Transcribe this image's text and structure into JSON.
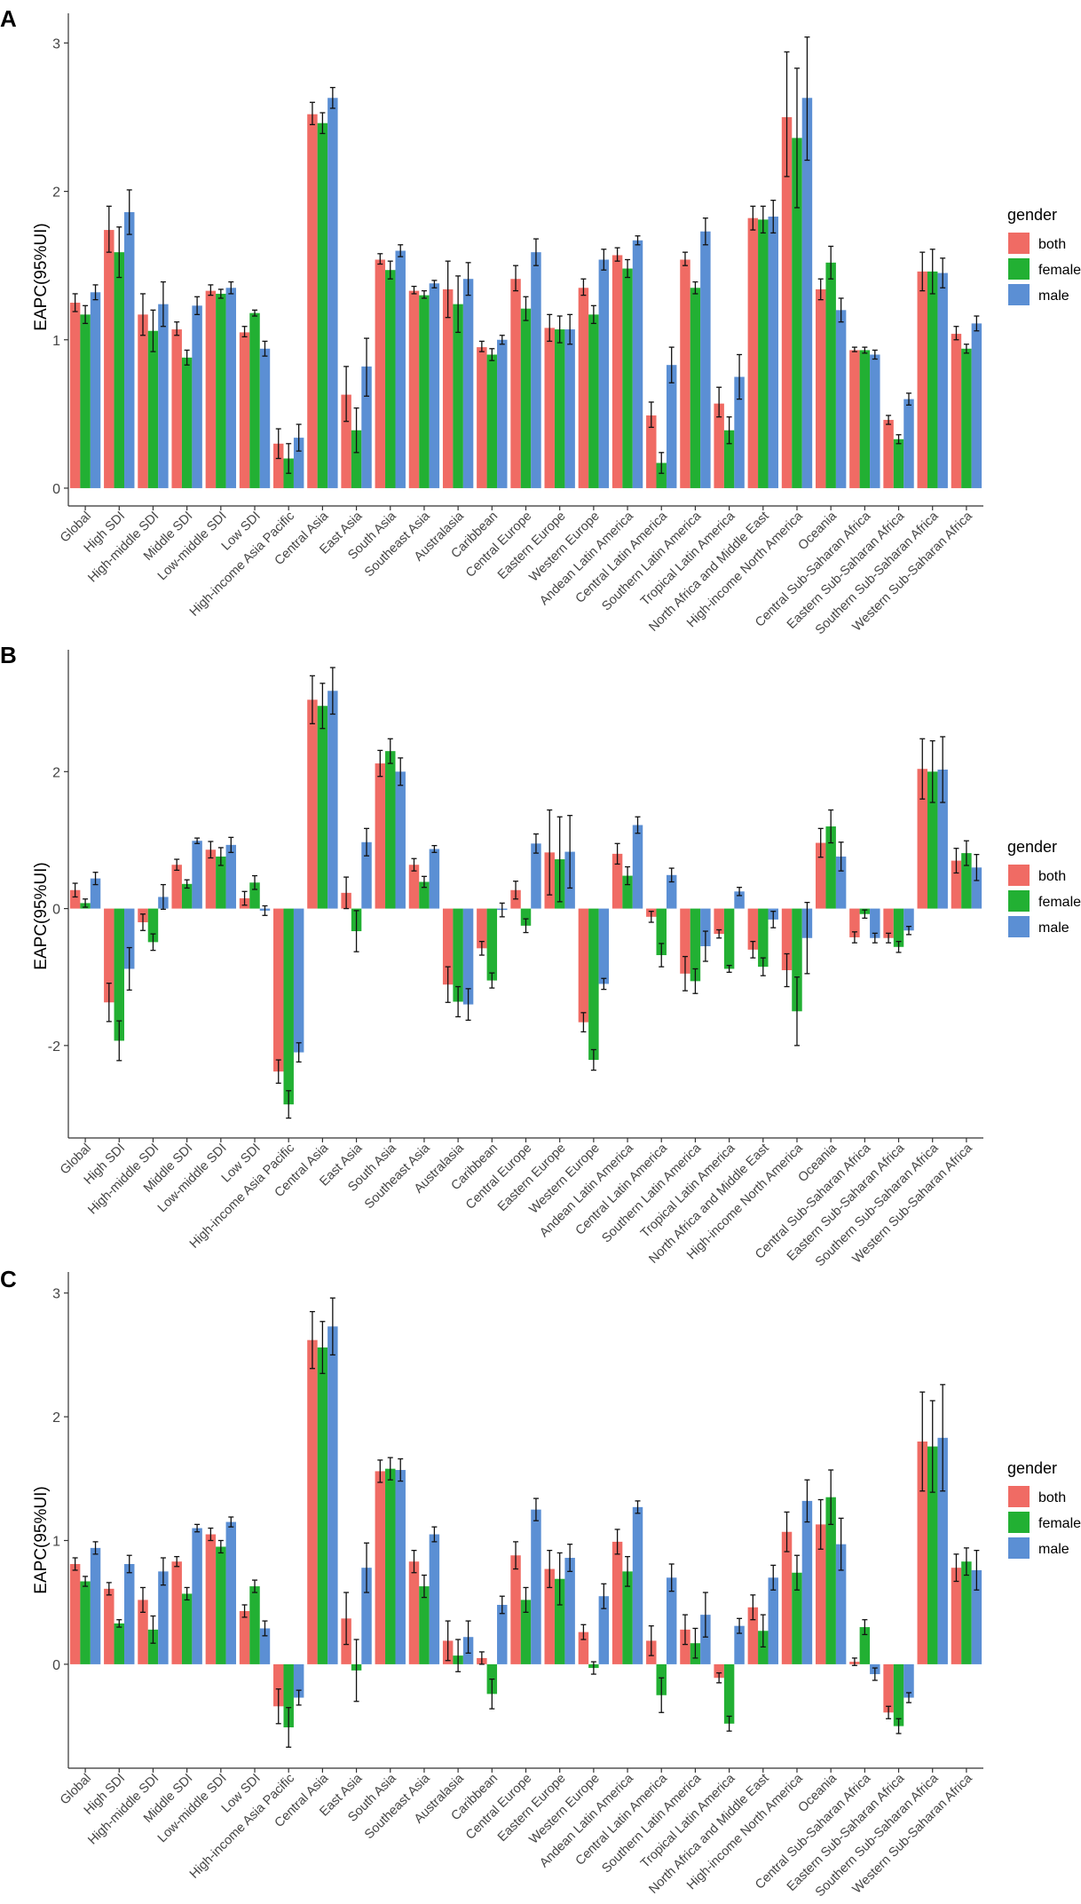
{
  "colors": {
    "both": "#F06B64",
    "female": "#22B033",
    "male": "#5B8FD4",
    "axis": "#333333",
    "errorbar": "#111111"
  },
  "legend_title": "gender",
  "chart_data": [
    {
      "panel": "A",
      "type": "bar",
      "ylabel": "EAPC(95%UI)",
      "ylim": [
        -0.12,
        3.2
      ],
      "yticks": [
        0,
        1,
        2,
        3
      ],
      "legend": "right",
      "categories": [
        "Global",
        "High SDI",
        "High-middle SDI",
        "Middle SDI",
        "Low-middle SDI",
        "Low SDI",
        "High-income Asia Pacific",
        "Central Asia",
        "East Asia",
        "South Asia",
        "Southeast Asia",
        "Australasia",
        "Caribbean",
        "Central Europe",
        "Eastern Europe",
        "Western Europe",
        "Andean Latin America",
        "Central Latin America",
        "Southern Latin America",
        "Tropical Latin America",
        "North Africa and Middle East",
        "High-income North America",
        "Oceania",
        "Central Sub-Saharan Africa",
        "Eastern Sub-Saharan Africa",
        "Southern Sub-Saharan Africa",
        "Western Sub-Saharan Africa"
      ],
      "series": [
        {
          "name": "both",
          "values": [
            1.25,
            1.74,
            1.17,
            1.07,
            1.33,
            1.05,
            0.3,
            2.52,
            0.63,
            1.54,
            1.33,
            1.34,
            0.95,
            1.41,
            1.08,
            1.35,
            1.57,
            0.49,
            1.54,
            0.57,
            1.82,
            2.5,
            1.34,
            0.93,
            0.46,
            1.46,
            1.04
          ],
          "lower": [
            1.19,
            1.59,
            1.03,
            1.03,
            1.3,
            1.02,
            0.2,
            2.45,
            0.45,
            1.51,
            1.31,
            1.15,
            0.92,
            1.33,
            0.99,
            1.3,
            1.53,
            0.41,
            1.5,
            0.48,
            1.74,
            2.1,
            1.27,
            0.92,
            0.43,
            1.33,
            1.0
          ],
          "upper": [
            1.31,
            1.9,
            1.31,
            1.12,
            1.37,
            1.09,
            0.4,
            2.6,
            0.82,
            1.58,
            1.36,
            1.53,
            0.99,
            1.5,
            1.17,
            1.41,
            1.62,
            0.58,
            1.59,
            0.68,
            1.9,
            2.94,
            1.41,
            0.95,
            0.49,
            1.59,
            1.09
          ]
        },
        {
          "name": "female",
          "values": [
            1.17,
            1.59,
            1.06,
            0.88,
            1.31,
            1.18,
            0.2,
            2.46,
            0.39,
            1.47,
            1.3,
            1.24,
            0.9,
            1.21,
            1.07,
            1.17,
            1.48,
            0.17,
            1.35,
            0.39,
            1.81,
            2.36,
            1.52,
            0.93,
            0.33,
            1.46,
            0.94
          ],
          "lower": [
            1.11,
            1.42,
            0.92,
            0.83,
            1.28,
            1.16,
            0.1,
            2.39,
            0.24,
            1.41,
            1.28,
            1.05,
            0.86,
            1.13,
            0.98,
            1.11,
            1.42,
            0.1,
            1.31,
            0.3,
            1.72,
            1.89,
            1.41,
            0.91,
            0.3,
            1.31,
            0.91
          ],
          "upper": [
            1.23,
            1.76,
            1.2,
            0.93,
            1.34,
            1.2,
            0.3,
            2.53,
            0.54,
            1.53,
            1.33,
            1.43,
            0.94,
            1.29,
            1.16,
            1.23,
            1.54,
            0.24,
            1.39,
            0.48,
            1.9,
            2.83,
            1.63,
            0.95,
            0.36,
            1.61,
            0.97
          ]
        },
        {
          "name": "male",
          "values": [
            1.32,
            1.86,
            1.24,
            1.23,
            1.35,
            0.94,
            0.34,
            2.63,
            0.82,
            1.6,
            1.38,
            1.41,
            1.0,
            1.59,
            1.07,
            1.54,
            1.67,
            0.83,
            1.73,
            0.75,
            1.83,
            2.63,
            1.2,
            0.9,
            0.6,
            1.45,
            1.11
          ],
          "lower": [
            1.27,
            1.71,
            1.09,
            1.17,
            1.31,
            0.89,
            0.25,
            2.56,
            0.62,
            1.56,
            1.35,
            1.3,
            0.97,
            1.5,
            0.97,
            1.47,
            1.64,
            0.71,
            1.64,
            0.6,
            1.72,
            2.21,
            1.12,
            0.87,
            0.56,
            1.35,
            1.06
          ],
          "upper": [
            1.37,
            2.01,
            1.39,
            1.29,
            1.39,
            0.99,
            0.43,
            2.7,
            1.01,
            1.64,
            1.4,
            1.52,
            1.03,
            1.68,
            1.17,
            1.61,
            1.7,
            0.95,
            1.82,
            0.9,
            1.94,
            3.04,
            1.28,
            0.93,
            0.64,
            1.55,
            1.16
          ]
        }
      ]
    },
    {
      "panel": "B",
      "type": "bar",
      "ylabel": "EAPC(95%UI)",
      "ylim": [
        -3.35,
        3.78
      ],
      "yticks": [
        -2,
        0,
        2
      ],
      "legend": "right",
      "categories": [
        "Global",
        "High SDI",
        "High-middle SDI",
        "Middle SDI",
        "Low-middle SDI",
        "Low SDI",
        "High-income Asia Pacific",
        "Central Asia",
        "East Asia",
        "South Asia",
        "Southeast Asia",
        "Australasia",
        "Caribbean",
        "Central Europe",
        "Eastern Europe",
        "Western Europe",
        "Andean Latin America",
        "Central Latin America",
        "Southern Latin America",
        "Tropical Latin America",
        "North Africa and Middle East",
        "High-income North America",
        "Oceania",
        "Central Sub-Saharan Africa",
        "Eastern Sub-Saharan Africa",
        "Southern Sub-Saharan Africa",
        "Western Sub-Saharan Africa"
      ],
      "series": [
        {
          "name": "both",
          "values": [
            0.27,
            -1.37,
            -0.2,
            0.64,
            0.86,
            0.15,
            -2.38,
            3.05,
            0.23,
            2.12,
            0.64,
            -1.11,
            -0.58,
            0.27,
            0.82,
            -1.66,
            0.8,
            -0.12,
            -0.95,
            -0.37,
            -0.6,
            -0.9,
            0.96,
            -0.42,
            -0.43,
            2.04,
            0.7
          ],
          "lower": [
            0.17,
            -1.65,
            -0.32,
            0.56,
            0.74,
            0.05,
            -2.55,
            2.7,
            0.0,
            1.93,
            0.55,
            -1.37,
            -0.68,
            0.14,
            0.2,
            -1.8,
            0.65,
            -0.2,
            -1.2,
            -0.43,
            -0.72,
            -1.14,
            0.75,
            -0.5,
            -0.5,
            1.6,
            0.52
          ],
          "upper": [
            0.37,
            -1.09,
            -0.08,
            0.72,
            0.98,
            0.25,
            -2.21,
            3.4,
            0.46,
            2.31,
            0.73,
            -0.85,
            -0.48,
            0.4,
            1.44,
            -1.52,
            0.95,
            -0.04,
            -0.7,
            -0.31,
            -0.48,
            -0.66,
            1.17,
            -0.34,
            -0.36,
            2.48,
            0.88
          ]
        },
        {
          "name": "female",
          "values": [
            0.08,
            -1.93,
            -0.49,
            0.36,
            0.76,
            0.38,
            -2.86,
            2.96,
            -0.33,
            2.3,
            0.39,
            -1.36,
            -1.05,
            -0.25,
            0.72,
            -2.21,
            0.48,
            -0.68,
            -1.06,
            -0.88,
            -0.85,
            -1.5,
            1.2,
            -0.08,
            -0.56,
            2.0,
            0.81
          ],
          "lower": [
            0.02,
            -2.22,
            -0.61,
            0.3,
            0.63,
            0.28,
            -3.06,
            2.63,
            -0.63,
            2.12,
            0.31,
            -1.58,
            -1.16,
            -0.35,
            0.1,
            -2.36,
            0.35,
            -0.85,
            -1.24,
            -0.93,
            -0.98,
            -2.0,
            0.96,
            -0.14,
            -0.64,
            1.55,
            0.63
          ],
          "upper": [
            0.14,
            -1.64,
            -0.37,
            0.42,
            0.89,
            0.48,
            -2.66,
            3.29,
            -0.03,
            2.48,
            0.47,
            -1.14,
            -0.94,
            -0.15,
            1.34,
            -2.06,
            0.61,
            -0.51,
            -0.88,
            -0.83,
            -0.72,
            -1.0,
            1.44,
            -0.02,
            -0.48,
            2.45,
            0.99
          ]
        },
        {
          "name": "male",
          "values": [
            0.44,
            -0.88,
            0.17,
            0.99,
            0.93,
            -0.03,
            -2.1,
            3.18,
            0.97,
            2.0,
            0.87,
            -1.4,
            -0.02,
            0.95,
            0.83,
            -1.1,
            1.22,
            0.49,
            -0.55,
            0.25,
            -0.16,
            -0.43,
            0.76,
            -0.43,
            -0.32,
            2.03,
            0.6
          ],
          "lower": [
            0.35,
            -1.19,
            -0.01,
            0.95,
            0.82,
            -0.1,
            -2.24,
            2.84,
            0.77,
            1.8,
            0.82,
            -1.63,
            -0.12,
            0.81,
            0.3,
            -1.18,
            1.1,
            0.39,
            -0.77,
            0.19,
            -0.28,
            -0.95,
            0.55,
            -0.5,
            -0.38,
            1.55,
            0.41
          ],
          "upper": [
            0.53,
            -0.57,
            0.35,
            1.03,
            1.04,
            0.04,
            -1.96,
            3.52,
            1.17,
            2.2,
            0.92,
            -1.17,
            0.08,
            1.09,
            1.36,
            -1.02,
            1.34,
            0.59,
            -0.33,
            0.31,
            -0.04,
            0.09,
            0.97,
            -0.36,
            -0.26,
            2.51,
            0.79
          ]
        }
      ]
    },
    {
      "panel": "C",
      "type": "bar",
      "ylabel": "EAPC(95%UI)",
      "ylim": [
        -0.84,
        3.17
      ],
      "yticks": [
        0,
        1,
        2,
        3
      ],
      "legend": "right",
      "categories": [
        "Global",
        "High SDI",
        "High-middle SDI",
        "Middle SDI",
        "Low-middle SDI",
        "Low SDI",
        "High-income Asia Pacific",
        "Central Asia",
        "East Asia",
        "South Asia",
        "Southeast Asia",
        "Australasia",
        "Caribbean",
        "Central Europe",
        "Eastern Europe",
        "Western Europe",
        "Andean Latin America",
        "Central Latin America",
        "Southern Latin America",
        "Tropical Latin America",
        "North Africa and Middle East",
        "High-income North America",
        "Oceania",
        "Central Sub-Saharan Africa",
        "Eastern Sub-Saharan Africa",
        "Southern Sub-Saharan Africa",
        "Western Sub-Saharan Africa"
      ],
      "series": [
        {
          "name": "both",
          "values": [
            0.81,
            0.61,
            0.52,
            0.83,
            1.05,
            0.43,
            -0.34,
            2.62,
            0.37,
            1.56,
            0.83,
            0.19,
            0.05,
            0.88,
            0.77,
            0.26,
            0.99,
            0.19,
            0.28,
            -0.11,
            0.46,
            1.07,
            1.13,
            0.02,
            -0.39,
            1.8,
            0.78
          ],
          "lower": [
            0.76,
            0.56,
            0.42,
            0.79,
            1.0,
            0.38,
            -0.48,
            2.39,
            0.16,
            1.47,
            0.74,
            0.03,
            0.0,
            0.77,
            0.62,
            0.2,
            0.89,
            0.07,
            0.16,
            -0.15,
            0.36,
            0.91,
            0.93,
            -0.01,
            -0.44,
            1.4,
            0.67
          ],
          "upper": [
            0.86,
            0.66,
            0.62,
            0.87,
            1.1,
            0.48,
            -0.2,
            2.85,
            0.58,
            1.65,
            0.92,
            0.35,
            0.1,
            0.99,
            0.92,
            0.32,
            1.09,
            0.31,
            0.4,
            -0.07,
            0.56,
            1.23,
            1.33,
            0.05,
            -0.34,
            2.2,
            0.89
          ]
        },
        {
          "name": "female",
          "values": [
            0.67,
            0.33,
            0.28,
            0.57,
            0.95,
            0.63,
            -0.51,
            2.56,
            -0.05,
            1.58,
            0.63,
            0.07,
            -0.24,
            0.52,
            0.69,
            -0.03,
            0.75,
            -0.25,
            0.17,
            -0.48,
            0.27,
            0.74,
            1.35,
            0.3,
            -0.5,
            1.76,
            0.83
          ],
          "lower": [
            0.63,
            0.3,
            0.17,
            0.52,
            0.9,
            0.58,
            -0.67,
            2.35,
            -0.3,
            1.49,
            0.54,
            -0.06,
            -0.36,
            0.42,
            0.48,
            -0.08,
            0.63,
            -0.39,
            0.05,
            -0.54,
            0.14,
            0.6,
            1.13,
            0.24,
            -0.56,
            1.39,
            0.72
          ],
          "upper": [
            0.71,
            0.36,
            0.39,
            0.62,
            1.0,
            0.68,
            -0.35,
            2.77,
            0.2,
            1.67,
            0.72,
            0.2,
            -0.12,
            0.62,
            0.9,
            0.02,
            0.87,
            -0.11,
            0.29,
            -0.42,
            0.4,
            0.88,
            1.57,
            0.36,
            -0.44,
            2.13,
            0.94
          ]
        },
        {
          "name": "male",
          "values": [
            0.94,
            0.81,
            0.75,
            1.1,
            1.15,
            0.29,
            -0.27,
            2.73,
            0.78,
            1.57,
            1.05,
            0.22,
            0.48,
            1.25,
            0.86,
            0.55,
            1.27,
            0.7,
            0.4,
            0.31,
            0.7,
            1.32,
            0.97,
            -0.08,
            -0.27,
            1.83,
            0.76
          ],
          "lower": [
            0.89,
            0.74,
            0.64,
            1.07,
            1.11,
            0.23,
            -0.33,
            2.5,
            0.58,
            1.48,
            0.99,
            0.09,
            0.41,
            1.16,
            0.75,
            0.45,
            1.22,
            0.59,
            0.22,
            0.25,
            0.6,
            1.15,
            0.76,
            -0.13,
            -0.31,
            1.4,
            0.6
          ],
          "upper": [
            0.99,
            0.88,
            0.86,
            1.13,
            1.19,
            0.35,
            -0.21,
            2.96,
            0.98,
            1.66,
            1.11,
            0.35,
            0.55,
            1.34,
            0.97,
            0.65,
            1.32,
            0.81,
            0.58,
            0.37,
            0.8,
            1.49,
            1.18,
            -0.03,
            -0.23,
            2.26,
            0.92
          ]
        }
      ]
    }
  ]
}
